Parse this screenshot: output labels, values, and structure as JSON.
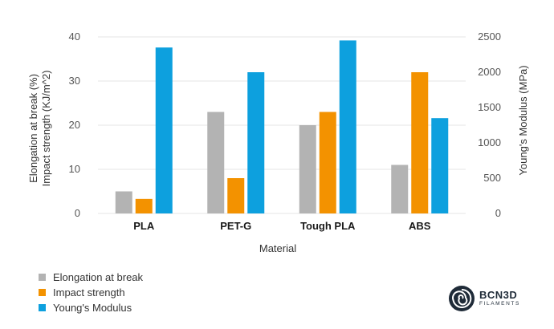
{
  "chart_data": {
    "type": "bar",
    "categories": [
      "PLA",
      "PET-G",
      "Tough PLA",
      "ABS"
    ],
    "series": [
      {
        "name": "Elongation at break",
        "axis": "left",
        "color": "#b3b3b3",
        "values": [
          5,
          23,
          20,
          11
        ]
      },
      {
        "name": "Impact strength",
        "axis": "left",
        "color": "#f39200",
        "values": [
          3.3,
          8,
          23,
          32
        ]
      },
      {
        "name": "Young's Modulus",
        "axis": "right",
        "color": "#0da0de",
        "values": [
          2350,
          2000,
          2450,
          1350
        ]
      }
    ],
    "xlabel": "Material",
    "ylabel_left": [
      "Elongation at break (%)",
      "Impact strength (KJ/m^2)"
    ],
    "ylabel_right": "Young's Modulus (MPa)",
    "ylim_left": [
      0,
      40
    ],
    "ylim_right": [
      0,
      2500
    ],
    "yticks_left": [
      "0",
      "10",
      "20",
      "30",
      "40"
    ],
    "yticks_right": [
      "0",
      "500",
      "1000",
      "1500",
      "2000",
      "2500"
    ],
    "grid": true,
    "legend_position": "bottom-left"
  },
  "logo": {
    "brand": "BCN3D",
    "sub": "FILAMENTS"
  }
}
